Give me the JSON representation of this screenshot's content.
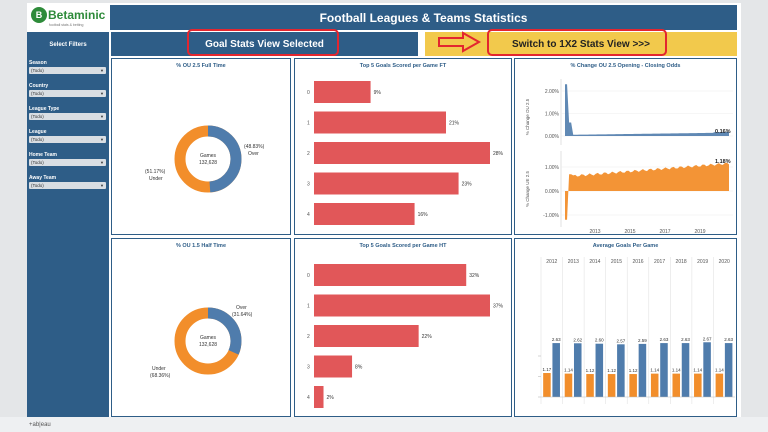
{
  "brand": {
    "logo_text": "Betaminic",
    "logo_tagline": "football stats & betting"
  },
  "header": {
    "title": "Football Leagues & Teams Statistics"
  },
  "sidebar": {
    "title": "Select Filters",
    "filters": [
      {
        "label": "Season",
        "value": "(Todo)"
      },
      {
        "label": "Country",
        "value": "(Todo)"
      },
      {
        "label": "League Type",
        "value": "(Todo)"
      },
      {
        "label": "League",
        "value": "(Todo)"
      },
      {
        "label": "Home Team",
        "value": "(Todo)"
      },
      {
        "label": "Away Team",
        "value": "(Todo)"
      }
    ]
  },
  "view_selector": {
    "current": "Goal Stats View Selected",
    "switch_label": "Switch to 1X2 Stats View >>>"
  },
  "colors": {
    "blue": "#4f7cac",
    "orange": "#f28e2b",
    "red": "#e15759",
    "navy": "#2e5d87",
    "yellow": "#f2c94c"
  },
  "panels": {
    "ou25": {
      "title": "% OU 2.5 Full Time",
      "center_label": "Games",
      "center_value": "132,628",
      "over_label": "Over",
      "over_pct": "(48.83%)",
      "under_label": "Under",
      "under_pct": "(51.17%)"
    },
    "top5ft": {
      "title": "Top 5 Goals Scored per Game FT"
    },
    "change": {
      "title": "% Change OU 2.5 Opening - Closing Odds",
      "top_ylabel": "% Change OU 2.5",
      "bottom_ylabel": "% Change UE 2.5",
      "top_last": "0.16%",
      "bottom_last": "1.18%",
      "years": [
        "2013",
        "2015",
        "2017",
        "2019"
      ],
      "top_ticks": [
        "2.00%",
        "1.00%",
        "0.00%"
      ],
      "bottom_ticks": [
        "1.00%",
        "0.00%",
        "-1.00%"
      ]
    },
    "ou15": {
      "title": "% OU 1.5 Half Time",
      "center_label": "Games",
      "center_value": "132,628",
      "over_label": "Over",
      "over_pct": "(31.64%)",
      "under_label": "Under",
      "under_pct": "(68.36%)"
    },
    "top5ht": {
      "title": "Top 5 Goals Scored per Game HT"
    },
    "avg": {
      "title": "Average Goals Per Game"
    }
  },
  "footer": {
    "brand": "+ab|eau"
  },
  "chart_data": [
    {
      "type": "pie",
      "title": "% OU 2.5 Full Time",
      "categories": [
        "Over",
        "Under"
      ],
      "values": [
        48.83,
        51.17
      ],
      "center": "Games 132,628"
    },
    {
      "type": "bar",
      "title": "Top 5 Goals Scored per Game FT",
      "categories": [
        "0",
        "1",
        "2",
        "3",
        "4"
      ],
      "values": [
        9,
        21,
        28,
        23,
        16
      ]
    },
    {
      "type": "line",
      "title": "% Change OU 2.5 Opening - Closing Odds",
      "series": [
        {
          "name": "% Change OU 2.5",
          "last_value": 0.16
        },
        {
          "name": "% Change UE 2.5",
          "last_value": 1.18
        }
      ],
      "x_ticks": [
        "2013",
        "2015",
        "2017",
        "2019"
      ]
    },
    {
      "type": "pie",
      "title": "% OU 1.5 Half Time",
      "categories": [
        "Over",
        "Under"
      ],
      "values": [
        31.64,
        68.36
      ],
      "center": "Games 132,628"
    },
    {
      "type": "bar",
      "title": "Top 5 Goals Scored per Game HT",
      "categories": [
        "0",
        "1",
        "2",
        "3",
        "4"
      ],
      "values": [
        32,
        37,
        22,
        8,
        2
      ]
    },
    {
      "type": "bar",
      "title": "Average Goals Per Game",
      "categories": [
        "2012",
        "2013",
        "2014",
        "2015",
        "2016",
        "2017",
        "2018",
        "2019",
        "2020"
      ],
      "series": [
        {
          "values": [
            2.63,
            2.62,
            2.6,
            2.57,
            2.59,
            2.63,
            2.63,
            2.67,
            2.63
          ]
        },
        {
          "values": [
            1.17,
            1.14,
            1.12,
            1.12,
            1.12,
            1.14,
            1.14,
            1.14,
            1.14
          ]
        }
      ]
    }
  ]
}
